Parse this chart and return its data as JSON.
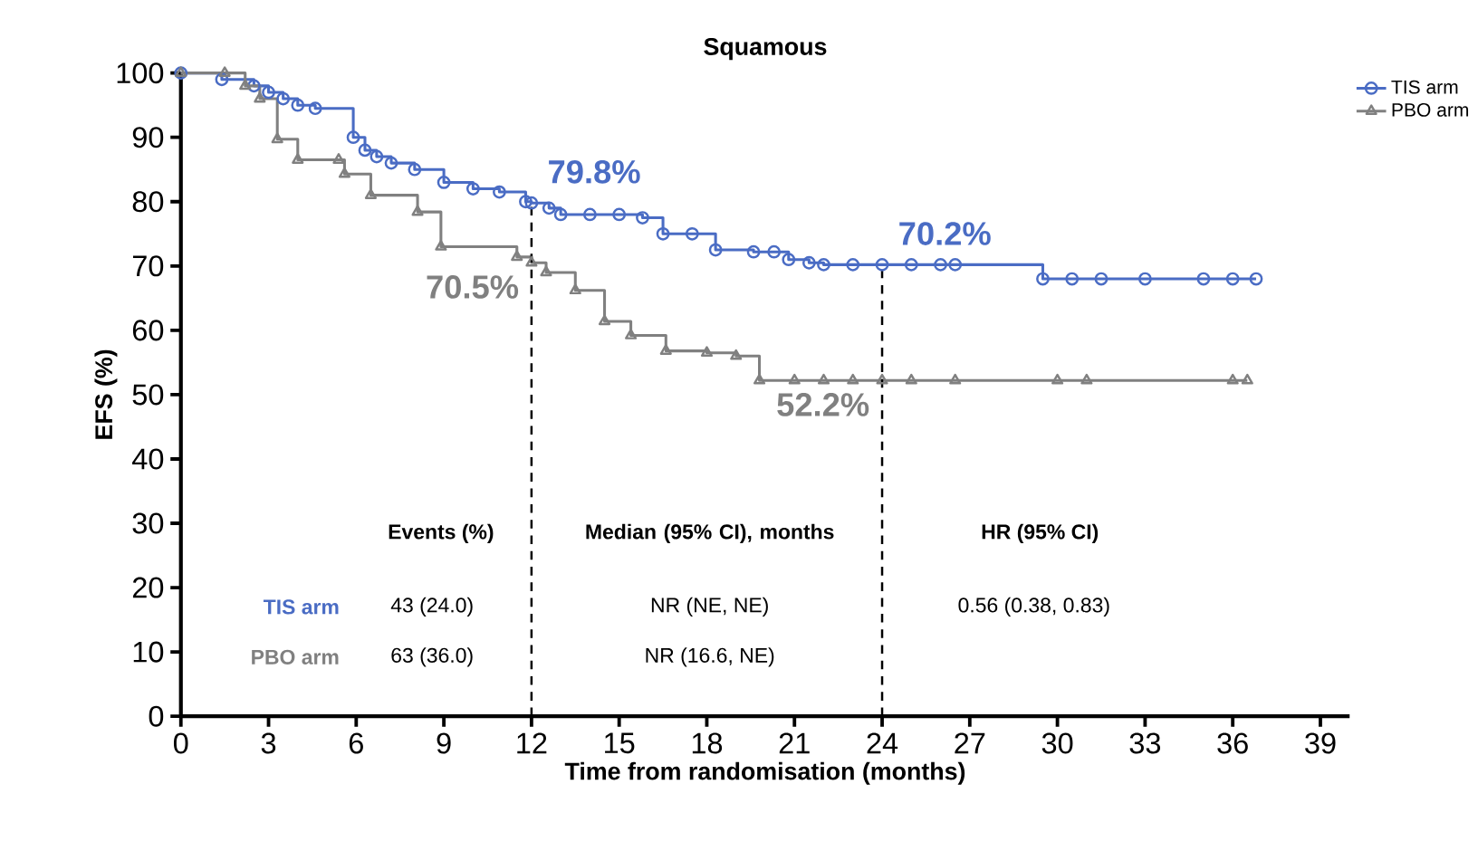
{
  "chart_data": {
    "type": "step",
    "title": "Squamous",
    "xlabel": "Time from randomisation (months)",
    "ylabel": "EFS (%)",
    "xlim": [
      0,
      40
    ],
    "ylim": [
      0,
      100
    ],
    "xticks": [
      0,
      3,
      6,
      9,
      12,
      15,
      18,
      21,
      24,
      27,
      30,
      33,
      36,
      39
    ],
    "yticks": [
      0,
      10,
      20,
      30,
      40,
      50,
      60,
      70,
      80,
      90,
      100
    ],
    "grid": false,
    "legend": "top right",
    "series": [
      {
        "name": "TIS arm",
        "color": "#4a6cc4",
        "marker": "circle",
        "x": [
          0,
          1.4,
          2.5,
          3,
          3.5,
          4,
          4.6,
          5.9,
          6.3,
          6.7,
          7.2,
          8,
          9,
          10,
          10.9,
          11.8,
          12,
          12.6,
          13,
          14,
          15,
          15.8,
          16.5,
          17.5,
          18.3,
          19.6,
          20.3,
          20.8,
          21.5,
          22,
          23,
          24,
          25,
          26,
          26.5,
          29.5,
          30.5,
          31.5,
          33,
          35,
          36,
          36.8
        ],
        "values": [
          100,
          99,
          98,
          97,
          96,
          95,
          94.5,
          90,
          88,
          87,
          86,
          85,
          83,
          82,
          81.5,
          80,
          79.8,
          79,
          78,
          78,
          78,
          77.5,
          75,
          75,
          72.5,
          72.2,
          72.2,
          71,
          70.5,
          70.2,
          70.2,
          70.2,
          70.2,
          70.2,
          70.2,
          68,
          68,
          68,
          68,
          68,
          68,
          68
        ],
        "value_labels": [
          null,
          null,
          null,
          null,
          null,
          null,
          null,
          null,
          null,
          null,
          null,
          null,
          null,
          null,
          null,
          null,
          "79.8%",
          null,
          null,
          null,
          null,
          null,
          null,
          null,
          null,
          null,
          null,
          null,
          null,
          null,
          null,
          "70.2%",
          null,
          null,
          null,
          null,
          null,
          null,
          null,
          null,
          null,
          null
        ]
      },
      {
        "name": "PBO arm",
        "color": "#808080",
        "marker": "triangle",
        "x": [
          0,
          1.5,
          2.2,
          2.7,
          3.3,
          4,
          5.4,
          5.6,
          6.5,
          8.1,
          8.9,
          11.5,
          12,
          12.5,
          13.5,
          14.5,
          15.4,
          16.6,
          18,
          19,
          19.8,
          21,
          22,
          23,
          24,
          25,
          26.5,
          30,
          31,
          36,
          36.5
        ],
        "values": [
          100,
          100,
          98,
          96,
          89.7,
          86.5,
          86.5,
          84.3,
          81,
          78.4,
          73,
          71.4,
          70.5,
          69,
          66.2,
          61.4,
          59.2,
          56.8,
          56.5,
          56,
          52.2,
          52.2,
          52.2,
          52.2,
          52.2,
          52.2,
          52.2,
          52.2,
          52.2,
          52.2,
          52.2
        ],
        "value_labels": [
          null,
          null,
          null,
          null,
          null,
          null,
          null,
          null,
          null,
          null,
          null,
          null,
          "70.5%",
          null,
          null,
          null,
          null,
          null,
          null,
          null,
          null,
          null,
          null,
          null,
          "52.2%",
          null,
          null,
          null,
          null,
          null,
          null
        ]
      }
    ],
    "ref_lines": [
      {
        "axis": "x",
        "value": 12,
        "line_style": "dashed"
      },
      {
        "axis": "x",
        "value": 24,
        "line_style": "dashed"
      }
    ],
    "annotations": [
      "Events (%)",
      "Median (95% CI), months",
      "HR (95% CI)",
      "TIS arm",
      "43 (24.0)",
      "NR (NE, NE)",
      "0.56 (0.38, 0.83)",
      "PBO arm",
      "63 (36.0)",
      "NR (16.6, NE)"
    ]
  }
}
